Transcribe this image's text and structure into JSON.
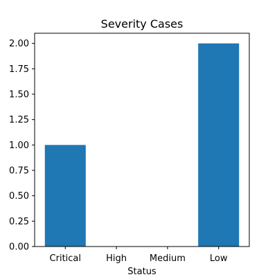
{
  "chart_data": {
    "type": "bar",
    "title": "Severity Cases",
    "xlabel": "Status",
    "ylabel": "",
    "categories": [
      "Critical",
      "High",
      "Medium",
      "Low"
    ],
    "values": [
      1,
      0,
      0,
      2
    ],
    "ylim": [
      0,
      2.1
    ],
    "yticks": [
      "0.00",
      "0.25",
      "0.50",
      "0.75",
      "1.00",
      "1.25",
      "1.50",
      "1.75",
      "2.00"
    ],
    "bar_color": "#1f77b4",
    "grid": false,
    "legend": "none"
  }
}
